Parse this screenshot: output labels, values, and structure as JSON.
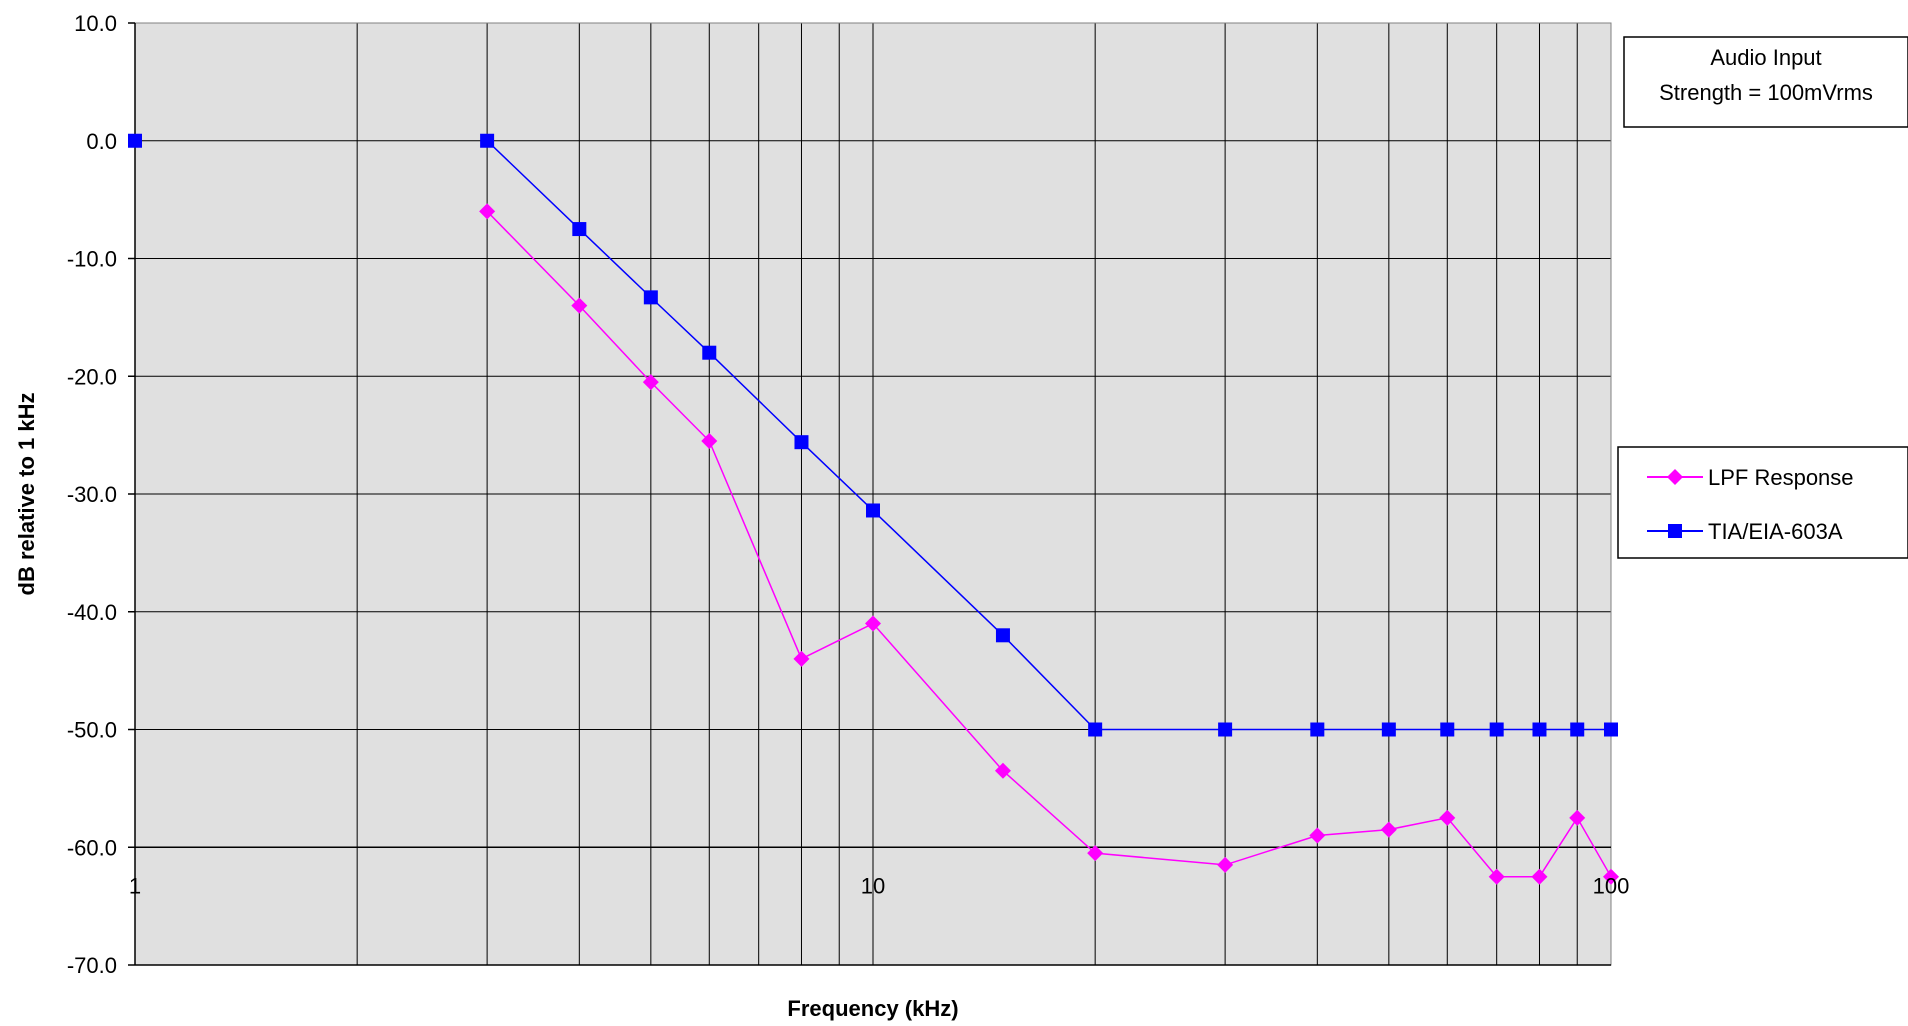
{
  "chart_data": {
    "type": "line",
    "title": "",
    "xlabel": "Frequency (kHz)",
    "ylabel": "dB relative to 1 kHz",
    "xscale": "log",
    "xlim": [
      1,
      100
    ],
    "ylim": [
      -70,
      10
    ],
    "ytick_step": 10,
    "x_tick_labels": [
      "1",
      "10",
      "100"
    ],
    "x_tick_values": [
      1,
      10,
      100
    ],
    "y_tick_labels": [
      "10.0",
      "0.0",
      "-10.0",
      "-20.0",
      "-30.0",
      "-40.0",
      "-50.0",
      "-60.0",
      "-70.0"
    ],
    "y_tick_values": [
      10,
      0,
      -10,
      -20,
      -30,
      -40,
      -50,
      -60,
      -70
    ],
    "x_axis_crossing_y": -60,
    "grid": true,
    "plot_background": "#e0e0e0",
    "legend_position": "right",
    "annotation": {
      "lines": [
        "Audio Input",
        "Strength = 100mVrms"
      ]
    },
    "series": [
      {
        "name": "LPF Response",
        "color": "#ff00ff",
        "marker": "diamond",
        "x": [
          3,
          4,
          5,
          6,
          8,
          10,
          15,
          20,
          30,
          40,
          50,
          60,
          70,
          80,
          90,
          100
        ],
        "y": [
          -6,
          -14,
          -20.5,
          -25.5,
          -44,
          -41,
          -53.5,
          -60.5,
          -61.5,
          -59,
          -58.5,
          -57.5,
          -62.5,
          -62.5,
          -57.5,
          -62.5
        ]
      },
      {
        "name": "TIA/EIA-603A",
        "color": "#0000ff",
        "marker": "square",
        "segments": [
          {
            "x": [
              1
            ],
            "y": [
              0
            ]
          },
          {
            "x": [
              3,
              4,
              5,
              6,
              8,
              10,
              15,
              20,
              30,
              40,
              50,
              60,
              70,
              80,
              90,
              100
            ],
            "y": [
              0,
              -7.5,
              -13.3,
              -18,
              -25.6,
              -31.4,
              -42,
              -50,
              -50,
              -50,
              -50,
              -50,
              -50,
              -50,
              -50,
              -50
            ]
          }
        ]
      }
    ]
  }
}
